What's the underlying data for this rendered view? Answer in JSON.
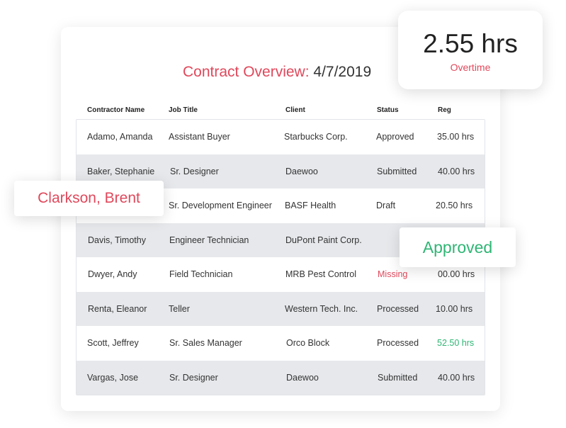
{
  "title": {
    "label": "Contract Overview:",
    "date": "4/7/2019"
  },
  "columns": [
    "Contractor Name",
    "Job Title",
    "Client",
    "Status",
    "Reg"
  ],
  "rows": [
    {
      "name": "Adamo, Amanda",
      "job": "Assistant Buyer",
      "client": "Starbucks Corp.",
      "status": "Approved",
      "reg": "35.00 hrs"
    },
    {
      "name": "Baker, Stephanie",
      "job": "Sr. Designer",
      "client": "Daewoo",
      "status": "Submitted",
      "reg": "40.00 hrs"
    },
    {
      "name": "",
      "job": "Sr. Development Engineer",
      "client": "BASF Health",
      "status": "Draft",
      "reg": "20.50 hrs"
    },
    {
      "name": "Davis, Timothy",
      "job": "Engineer Technician",
      "client": "DuPont Paint Corp.",
      "status": "",
      "reg": ""
    },
    {
      "name": "Dwyer, Andy",
      "job": "Field Technician",
      "client": "MRB Pest Control",
      "status": "Missing",
      "reg": "00.00 hrs"
    },
    {
      "name": "Renta, Eleanor",
      "job": "Teller",
      "client": "Western Tech. Inc.",
      "status": "Processed",
      "reg": "10.00 hrs"
    },
    {
      "name": "Scott, Jeffrey",
      "job": "Sr. Sales Manager",
      "client": "Orco Block",
      "status": "Processed",
      "reg": "52.50 hrs"
    },
    {
      "name": "Vargas, Jose",
      "job": "Sr. Designer",
      "client": "Daewoo",
      "status": "Submitted",
      "reg": "40.00 hrs"
    }
  ],
  "overtime": {
    "value": "2.55 hrs",
    "label": "Overtime"
  },
  "popup_name": "Clarkson, Brent",
  "popup_status": "Approved",
  "colors": {
    "accent_red": "#e0485b",
    "accent_green": "#2fb574",
    "row_alt": "#e6e8eb"
  }
}
